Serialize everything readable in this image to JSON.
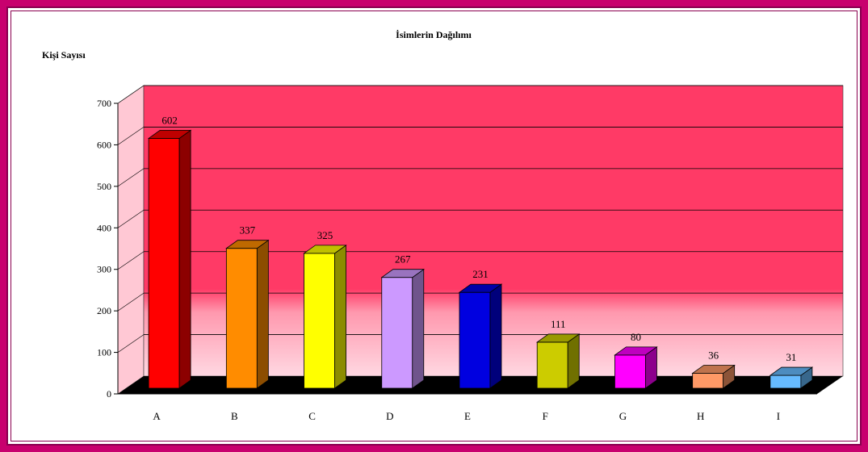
{
  "chart_data": {
    "type": "bar",
    "title": "İsimlerin Dağılımı",
    "ylabel": "Kişi Sayısı",
    "xlabel": "",
    "categories": [
      "A",
      "B",
      "C",
      "D",
      "E",
      "F",
      "G",
      "H",
      "I"
    ],
    "values": [
      602,
      337,
      325,
      267,
      231,
      111,
      80,
      36,
      31
    ],
    "ylim": [
      0,
      700
    ],
    "yticks": [
      0,
      100,
      200,
      300,
      400,
      500,
      600,
      700
    ],
    "grid": true,
    "legend": "none",
    "bar_colors": [
      "#ff0000",
      "#ff8c00",
      "#ffff00",
      "#cc99ff",
      "#0000e0",
      "#cccc00",
      "#ff00ff",
      "#ff9966",
      "#66bbff"
    ],
    "wall_colors": {
      "top": "#ff3a66",
      "bottom": "#ffd0dc",
      "side": "#ffc8d4",
      "floor": "#000000"
    }
  }
}
